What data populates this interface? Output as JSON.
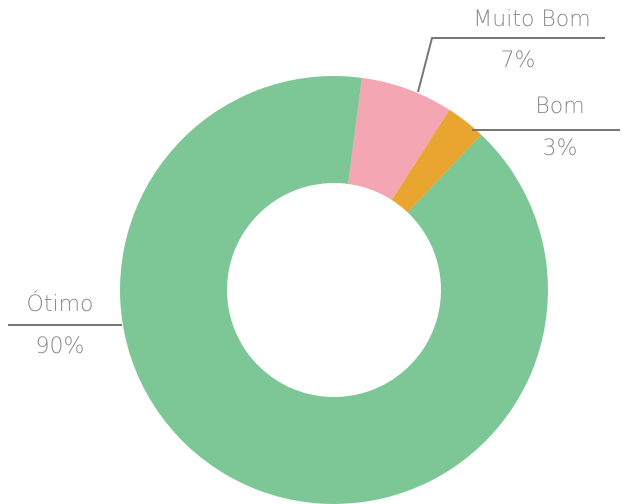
{
  "chart_data": {
    "type": "donut",
    "categories": [
      "Muito Bom",
      "Bom",
      "Ótimo"
    ],
    "values": [
      7,
      3,
      90
    ],
    "value_labels": [
      "7%",
      "3%",
      "90%"
    ],
    "colors": [
      "#f4a6b2",
      "#e8a630",
      "#7cc795"
    ]
  }
}
